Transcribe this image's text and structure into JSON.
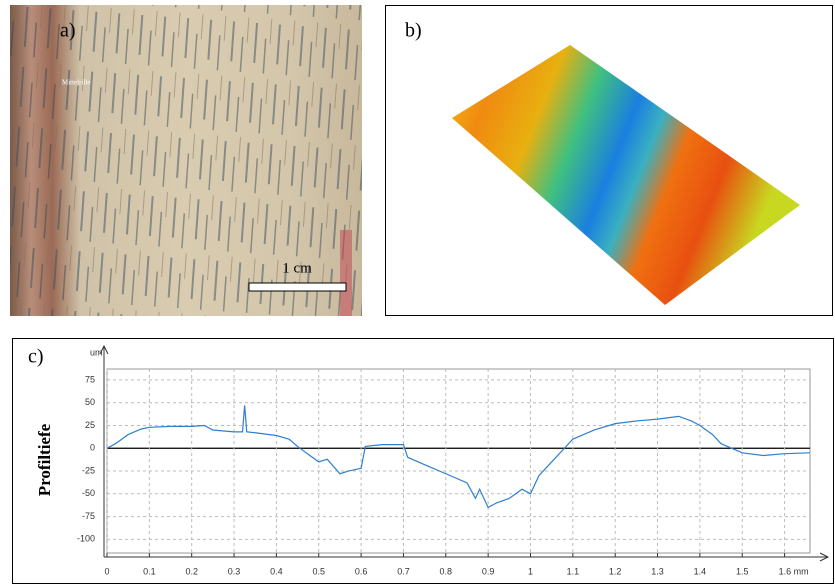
{
  "panel_a": {
    "label": "a)",
    "annotation": "Mittelrille",
    "scale_bar": "1 cm"
  },
  "panel_b": {
    "label": "b)"
  },
  "chart_data": {
    "type": "line",
    "panel_label": "c)",
    "y_unit": "um",
    "ylabel": "Profiltiefe",
    "x": [
      0,
      0.02,
      0.05,
      0.08,
      0.1,
      0.15,
      0.2,
      0.23,
      0.25,
      0.3,
      0.32,
      0.325,
      0.33,
      0.35,
      0.4,
      0.43,
      0.45,
      0.47,
      0.5,
      0.52,
      0.55,
      0.57,
      0.6,
      0.61,
      0.65,
      0.7,
      0.71,
      0.75,
      0.8,
      0.85,
      0.87,
      0.88,
      0.9,
      0.92,
      0.95,
      0.98,
      1.0,
      1.02,
      1.05,
      1.08,
      1.1,
      1.15,
      1.2,
      1.25,
      1.3,
      1.35,
      1.38,
      1.4,
      1.43,
      1.45,
      1.5,
      1.55,
      1.6,
      1.66
    ],
    "values": [
      0,
      5,
      15,
      21,
      23,
      24,
      24,
      25,
      20,
      18,
      18,
      47,
      18,
      17,
      14,
      10,
      2,
      -5,
      -15,
      -12,
      -28,
      -25,
      -22,
      2,
      4,
      4,
      -10,
      -18,
      -28,
      -38,
      -55,
      -45,
      -65,
      -60,
      -55,
      -45,
      -50,
      -30,
      -15,
      0,
      10,
      20,
      27,
      30,
      32,
      35,
      30,
      25,
      15,
      5,
      -5,
      -8,
      -6,
      -5
    ],
    "color": "#2f7fd1",
    "xlim": [
      0,
      1.66
    ],
    "ylim": [
      -115,
      87
    ],
    "xticks": [
      0,
      0.1,
      0.2,
      0.3,
      0.4,
      0.5,
      0.6,
      0.7,
      0.8,
      0.9,
      1,
      1.1,
      1.2,
      1.3,
      1.4,
      1.5,
      {
        "value": 1.6,
        "label": "1.6 mm"
      }
    ],
    "yticks": [
      75,
      50,
      25,
      0,
      -25,
      -50,
      -75,
      -100
    ],
    "grid": true
  }
}
